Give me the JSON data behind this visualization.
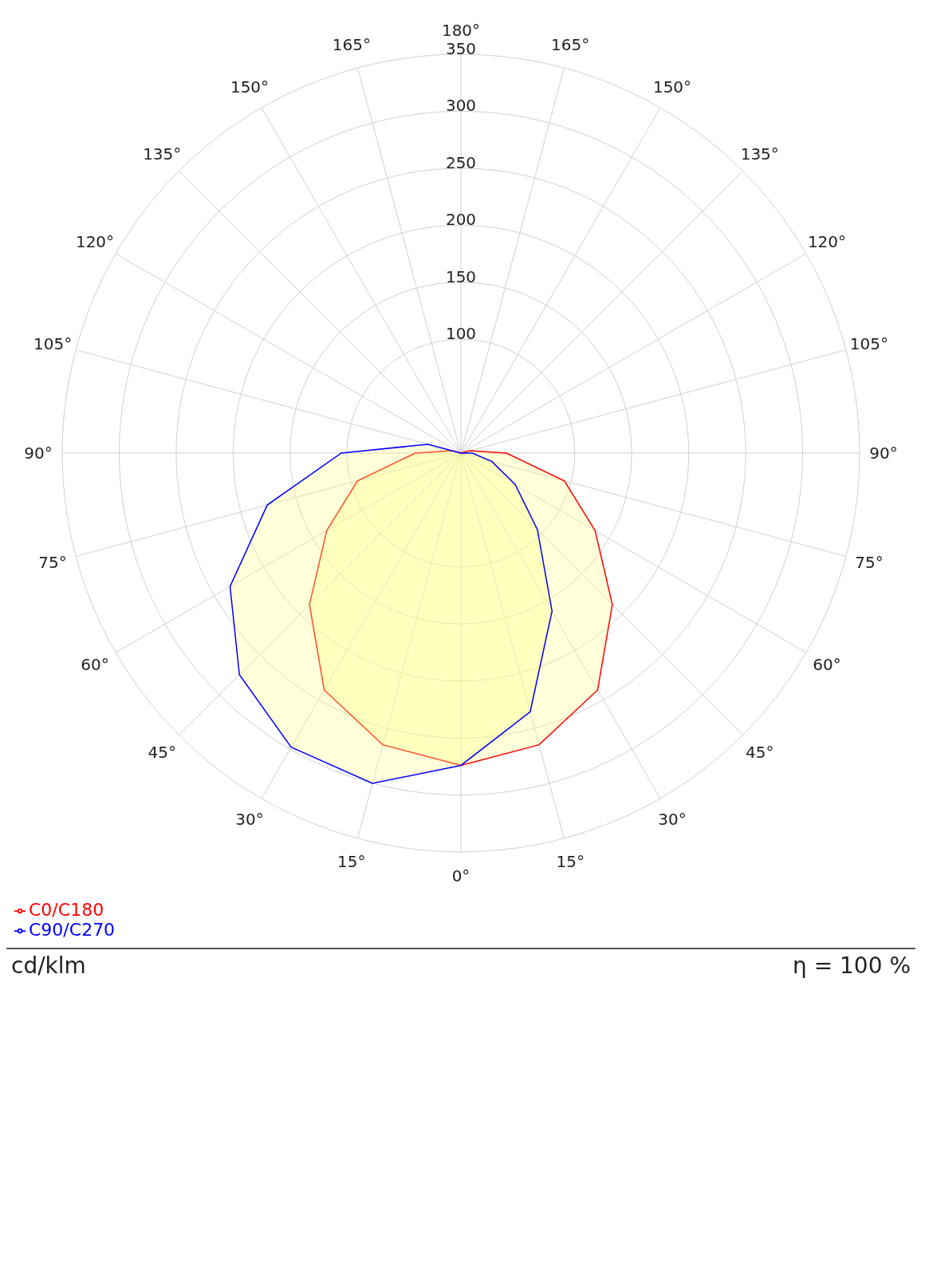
{
  "chart_data": {
    "type": "radar",
    "categories": [
      "180°",
      "165°",
      "150°",
      "135°",
      "120°",
      "105°",
      "90°",
      "75°",
      "60°",
      "45°",
      "30°",
      "15°",
      "0°",
      "15°",
      "30°",
      "45°",
      "60°",
      "75°",
      "90°",
      "105°",
      "120°",
      "135°",
      "150°",
      "165°"
    ],
    "series": [
      {
        "name": "C0/C180",
        "color": "#ff0000",
        "values": [
          0,
          0,
          0,
          0,
          0,
          8,
          40,
          94,
          136,
          188,
          240,
          265,
          274,
          265,
          240,
          188,
          136,
          94,
          40,
          8,
          0,
          0,
          0,
          0
        ]
      },
      {
        "name": "C90/C270",
        "color": "#0000ff",
        "values": [
          0,
          0,
          0,
          0,
          0,
          0,
          10,
          28,
          55,
          95,
          160,
          235,
          274,
          300,
          298,
          275,
          234,
          176,
          105,
          30,
          0,
          0,
          0,
          0
        ]
      }
    ],
    "ylim": [
      0,
      350
    ],
    "yticks": [
      100,
      150,
      200,
      250,
      300,
      350
    ],
    "grid": true,
    "legend": "bottom left",
    "ylabel": "cd/klm",
    "annotations": [
      "η = 100 %"
    ]
  }
}
